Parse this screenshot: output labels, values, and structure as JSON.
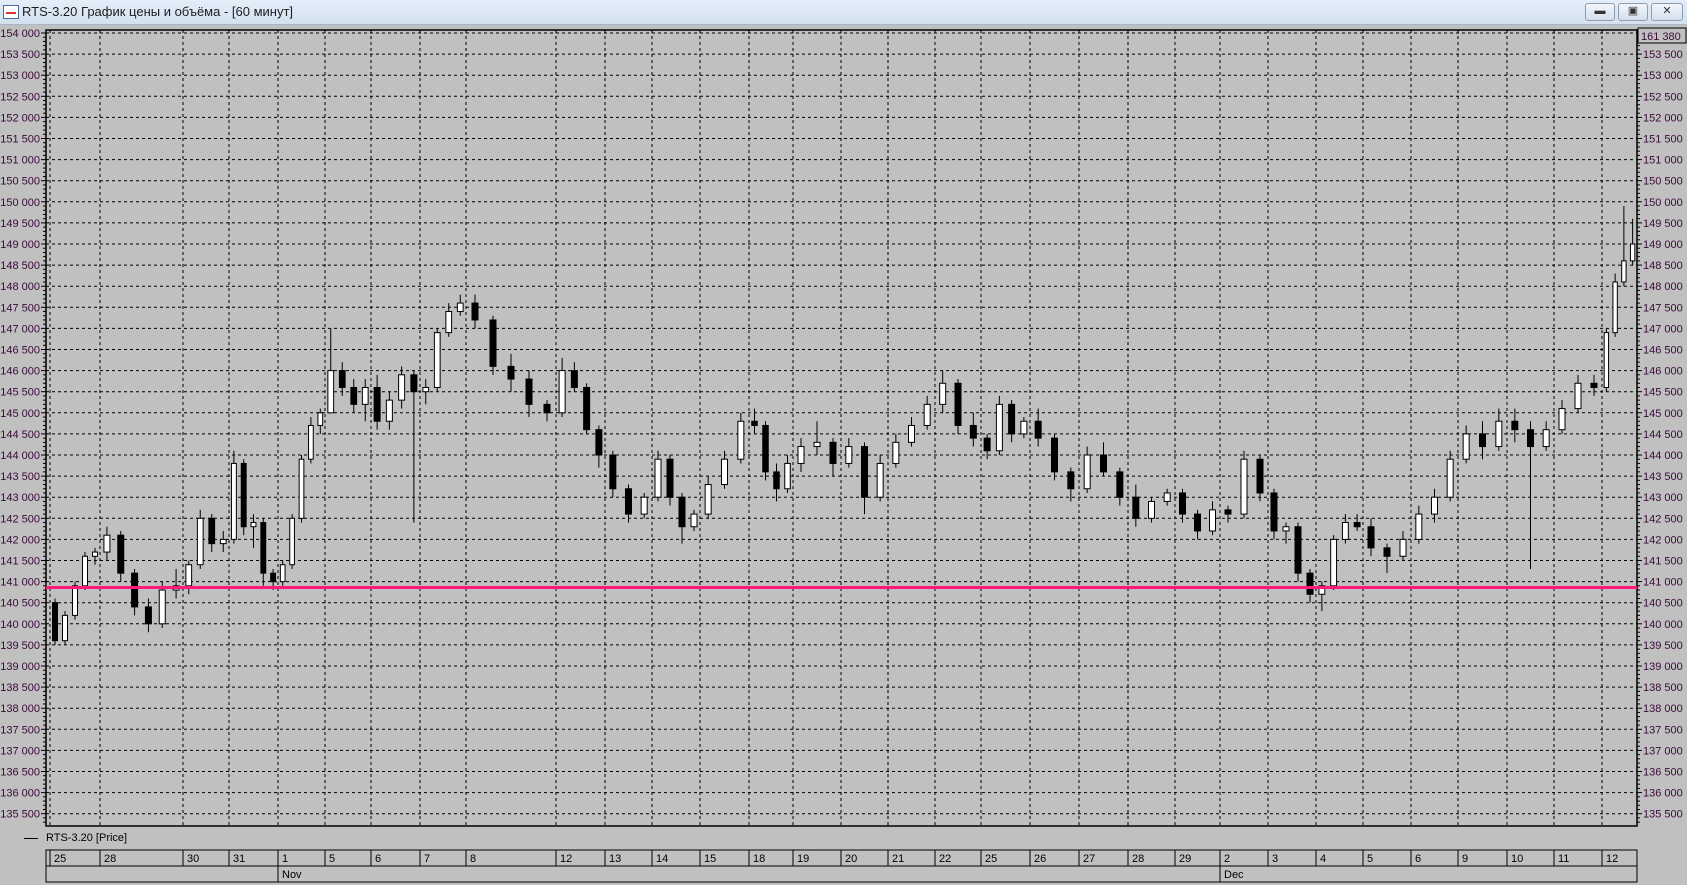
{
  "window": {
    "title": "RTS-3.20 График цены и объёма - [60 минут]",
    "buttons": {
      "minimize": "minimize-icon",
      "maximize": "maximize-icon",
      "close": "close-icon"
    }
  },
  "legend": {
    "label": "RTS-3.20 [Price]"
  },
  "colors": {
    "plot_bg": "#c0c0c0",
    "level_line": "#ff1a7a",
    "up_body": "#ffffff",
    "down_body": "#000000",
    "axis_text": "#3a0a3a"
  },
  "chart_data": {
    "type": "candlestick",
    "timeframe": "60 минут",
    "series_name": "RTS-3.20 [Price]",
    "ylim": [
      135200,
      154070
    ],
    "y_ticks": [
      154000,
      153500,
      153000,
      152500,
      152000,
      151500,
      151000,
      150500,
      150000,
      149500,
      149000,
      148500,
      148000,
      147500,
      147000,
      146500,
      146000,
      145500,
      145000,
      144500,
      144000,
      143500,
      143000,
      142500,
      142000,
      141500,
      141000,
      140500,
      140000,
      139500,
      139000,
      138500,
      138000,
      137500,
      137000,
      136500,
      136000,
      135500
    ],
    "y_tick_labels": [
      "154 000",
      "153 500",
      "153 000",
      "152 500",
      "152 000",
      "151 500",
      "151 000",
      "150 500",
      "150 000",
      "149 500",
      "149 000",
      "148 500",
      "148 000",
      "147 500",
      "147 000",
      "146 500",
      "146 000",
      "145 500",
      "145 000",
      "144 500",
      "144 000",
      "143 500",
      "143 000",
      "142 500",
      "142 000",
      "141 500",
      "141 000",
      "140 500",
      "140 000",
      "139 500",
      "139 000",
      "138 500",
      "138 000",
      "137 500",
      "137 000",
      "136 500",
      "136 000",
      "135 500"
    ],
    "top_value_label": "161 380",
    "horizontal_level": 140860,
    "grid": true,
    "months": [
      {
        "label": "Nov",
        "start_day_index": 4
      },
      {
        "label": "Dec",
        "start_day_index": 23
      }
    ],
    "days": [
      {
        "label": "25",
        "candles": [
          [
            140500,
            140600,
            139500,
            139600
          ],
          [
            139600,
            140300,
            139500,
            140200
          ],
          [
            140200,
            141000,
            140100,
            140900
          ],
          [
            140900,
            141700,
            140800,
            141600
          ],
          [
            141600,
            141800,
            141400,
            141700
          ]
        ]
      },
      {
        "label": "28",
        "candles": [
          [
            141700,
            142300,
            141500,
            142100
          ],
          [
            142100,
            142200,
            141000,
            141200
          ],
          [
            141200,
            141300,
            140200,
            140400
          ],
          [
            140400,
            140600,
            139800,
            140000
          ],
          [
            140000,
            141000,
            139900,
            140800
          ],
          [
            140800,
            141300,
            140600,
            140900
          ]
        ]
      },
      {
        "label": "30",
        "candles": [
          [
            140900,
            141500,
            140700,
            141400
          ],
          [
            141400,
            142700,
            141300,
            142500
          ],
          [
            142500,
            142600,
            141700,
            141900
          ],
          [
            141900,
            142200,
            141700,
            142000
          ]
        ]
      },
      {
        "label": "31",
        "candles": [
          [
            142000,
            144100,
            141900,
            143800
          ],
          [
            143800,
            143900,
            142100,
            142300
          ],
          [
            142300,
            142600,
            141800,
            142400
          ],
          [
            142400,
            142500,
            140900,
            141200
          ],
          [
            141200,
            141300,
            140800,
            141000
          ]
        ]
      },
      {
        "label": "1",
        "candles": [
          [
            141000,
            141500,
            140900,
            141400
          ],
          [
            141400,
            142600,
            141300,
            142500
          ],
          [
            142500,
            144000,
            142400,
            143900
          ],
          [
            143900,
            144900,
            143800,
            144700
          ],
          [
            144700,
            145100,
            144500,
            145000
          ]
        ]
      },
      {
        "label": "5",
        "candles": [
          [
            145000,
            147000,
            145000,
            146000
          ],
          [
            146000,
            146200,
            145400,
            145600
          ],
          [
            145600,
            145800,
            145000,
            145200
          ],
          [
            145200,
            145800,
            144800,
            145600
          ]
        ]
      },
      {
        "label": "6",
        "candles": [
          [
            145600,
            145900,
            144600,
            144800
          ],
          [
            144800,
            145500,
            144600,
            145300
          ],
          [
            145300,
            146100,
            145100,
            145900
          ],
          [
            145900,
            146000,
            142400,
            145500
          ]
        ]
      },
      {
        "label": "7",
        "candles": [
          [
            145500,
            145800,
            145200,
            145600
          ],
          [
            145600,
            147000,
            145500,
            146900
          ],
          [
            146900,
            147600,
            146800,
            147400
          ],
          [
            147400,
            147800,
            147300,
            147600
          ]
        ]
      },
      {
        "label": "8",
        "candles": [
          [
            147600,
            147800,
            147000,
            147200
          ],
          [
            147200,
            147300,
            145900,
            146100
          ],
          [
            146100,
            146400,
            145500,
            145800
          ],
          [
            145800,
            146000,
            144900,
            145200
          ],
          [
            145200,
            145300,
            144800,
            145000
          ]
        ]
      },
      {
        "label": "12",
        "candles": [
          [
            145000,
            146300,
            144900,
            146000
          ],
          [
            146000,
            146200,
            145500,
            145600
          ],
          [
            145600,
            145700,
            144500,
            144600
          ],
          [
            144600,
            144700,
            143700,
            144000
          ]
        ]
      },
      {
        "label": "13",
        "candles": [
          [
            144000,
            144100,
            143000,
            143200
          ],
          [
            143200,
            143300,
            142400,
            142600
          ],
          [
            142600,
            143100,
            142500,
            143000
          ]
        ]
      },
      {
        "label": "14",
        "candles": [
          [
            143000,
            144100,
            142900,
            143900
          ],
          [
            143900,
            144000,
            142800,
            143000
          ],
          [
            143000,
            143100,
            141900,
            142300
          ],
          [
            142300,
            142700,
            142200,
            142600
          ]
        ]
      },
      {
        "label": "15",
        "candles": [
          [
            142600,
            143500,
            142500,
            143300
          ],
          [
            143300,
            144100,
            143200,
            143900
          ],
          [
            143900,
            145000,
            143800,
            144800
          ]
        ]
      },
      {
        "label": "18",
        "candles": [
          [
            144800,
            145100,
            144500,
            144700
          ],
          [
            144700,
            144800,
            143400,
            143600
          ],
          [
            143600,
            143800,
            142900,
            143200
          ],
          [
            143200,
            144000,
            143100,
            143800
          ]
        ]
      },
      {
        "label": "19",
        "candles": [
          [
            143800,
            144400,
            143600,
            144200
          ],
          [
            144200,
            144800,
            144000,
            144300
          ],
          [
            144300,
            144400,
            143500,
            143800
          ]
        ]
      },
      {
        "label": "20",
        "candles": [
          [
            143800,
            144400,
            143700,
            144200
          ],
          [
            144200,
            144300,
            142600,
            143000
          ],
          [
            143000,
            144000,
            142900,
            143800
          ]
        ]
      },
      {
        "label": "21",
        "candles": [
          [
            143800,
            144500,
            143700,
            144300
          ],
          [
            144300,
            144900,
            144200,
            144700
          ],
          [
            144700,
            145400,
            144600,
            145200
          ]
        ]
      },
      {
        "label": "22",
        "candles": [
          [
            145200,
            146000,
            145000,
            145700
          ],
          [
            145700,
            145800,
            144500,
            144700
          ],
          [
            144700,
            145000,
            144200,
            144400
          ]
        ]
      },
      {
        "label": "25",
        "candles": [
          [
            144400,
            144500,
            143900,
            144100
          ],
          [
            144100,
            145400,
            144000,
            145200
          ],
          [
            145200,
            145300,
            144300,
            144500
          ],
          [
            144500,
            144900,
            144400,
            144800
          ]
        ]
      },
      {
        "label": "26",
        "candles": [
          [
            144800,
            145100,
            144200,
            144400
          ],
          [
            144400,
            144500,
            143400,
            143600
          ],
          [
            143600,
            143700,
            142900,
            143200
          ]
        ]
      },
      {
        "label": "27",
        "candles": [
          [
            143200,
            144200,
            143100,
            144000
          ],
          [
            144000,
            144300,
            143500,
            143600
          ],
          [
            143600,
            143700,
            142800,
            143000
          ]
        ]
      },
      {
        "label": "28",
        "candles": [
          [
            143000,
            143300,
            142300,
            142500
          ],
          [
            142500,
            143000,
            142400,
            142900
          ],
          [
            142900,
            143200,
            142800,
            143100
          ]
        ]
      },
      {
        "label": "29",
        "candles": [
          [
            143100,
            143200,
            142400,
            142600
          ],
          [
            142600,
            142700,
            142000,
            142200
          ],
          [
            142200,
            142900,
            142100,
            142700
          ]
        ]
      },
      {
        "label": "2",
        "candles": [
          [
            142700,
            142800,
            142400,
            142600
          ],
          [
            142600,
            144100,
            142500,
            143900
          ],
          [
            143900,
            144000,
            142900,
            143100
          ]
        ]
      },
      {
        "label": "3",
        "candles": [
          [
            143100,
            143200,
            142000,
            142200
          ],
          [
            142200,
            142400,
            141900,
            142300
          ],
          [
            142300,
            142400,
            141000,
            141200
          ],
          [
            141200,
            141300,
            140500,
            140700
          ]
        ]
      },
      {
        "label": "4",
        "candles": [
          [
            140700,
            141000,
            140300,
            140900
          ],
          [
            140900,
            142100,
            140800,
            142000
          ],
          [
            142000,
            142600,
            141900,
            142400
          ],
          [
            142400,
            142600,
            142200,
            142300
          ]
        ]
      },
      {
        "label": "5",
        "candles": [
          [
            142300,
            142500,
            141600,
            141800
          ],
          [
            141800,
            141900,
            141200,
            141600
          ],
          [
            141600,
            142200,
            141500,
            142000
          ]
        ]
      },
      {
        "label": "6",
        "candles": [
          [
            142000,
            142800,
            141900,
            142600
          ],
          [
            142600,
            143200,
            142400,
            143000
          ],
          [
            143000,
            144100,
            142900,
            143900
          ]
        ]
      },
      {
        "label": "9",
        "candles": [
          [
            143900,
            144700,
            143800,
            144500
          ],
          [
            144500,
            144800,
            143900,
            144200
          ],
          [
            144200,
            145100,
            144100,
            144800
          ]
        ]
      },
      {
        "label": "10",
        "candles": [
          [
            144800,
            145100,
            144300,
            144600
          ],
          [
            144600,
            144800,
            141300,
            144200
          ],
          [
            144200,
            144800,
            144100,
            144600
          ]
        ]
      },
      {
        "label": "11",
        "candles": [
          [
            144600,
            145300,
            144500,
            145100
          ],
          [
            145100,
            145900,
            145000,
            145700
          ],
          [
            145700,
            145900,
            145400,
            145600
          ]
        ]
      },
      {
        "label": "12",
        "candles": [
          [
            145600,
            147000,
            145500,
            146900
          ],
          [
            146900,
            148300,
            146800,
            148100
          ],
          [
            148100,
            149900,
            148000,
            148600
          ],
          [
            148600,
            149600,
            148500,
            149000
          ]
        ]
      }
    ]
  }
}
